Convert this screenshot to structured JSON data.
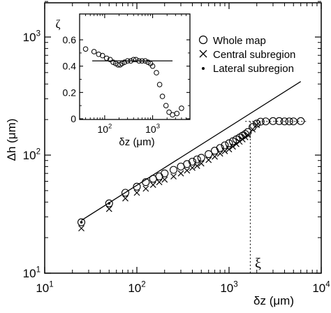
{
  "chart_data": [
    {
      "type": "scatter",
      "title": "",
      "xlabel": "δz (μm)",
      "ylabel": "Δh (μm)",
      "x_scale": "log",
      "y_scale": "log",
      "xlim": [
        10,
        10000
      ],
      "ylim": [
        10,
        2000
      ],
      "x_ticks": [
        {
          "value": 10,
          "base": "10",
          "exp": "1"
        },
        {
          "value": 100,
          "base": "10",
          "exp": "2"
        },
        {
          "value": 1000,
          "base": "10",
          "exp": "3"
        },
        {
          "value": 10000,
          "base": "10",
          "exp": "4"
        }
      ],
      "y_ticks": [
        {
          "value": 10,
          "base": "10",
          "exp": "1"
        },
        {
          "value": 100,
          "base": "10",
          "exp": "2"
        },
        {
          "value": 1000,
          "base": "10",
          "exp": "3"
        }
      ],
      "legend_position": "top-right",
      "series": [
        {
          "name": "Whole map",
          "marker": "circle",
          "x": [
            25,
            50,
            75,
            100,
            125,
            150,
            175,
            200,
            250,
            300,
            350,
            400,
            450,
            500,
            600,
            700,
            800,
            900,
            1000,
            1100,
            1200,
            1300,
            1400,
            1500,
            1600,
            1800,
            2000,
            2200,
            2500,
            3000,
            3500,
            4000,
            4500,
            5000,
            6000
          ],
          "y": [
            27,
            39,
            48,
            54,
            59,
            63,
            66,
            70,
            75,
            80,
            84,
            88,
            92,
            95,
            102,
            109,
            115,
            121,
            126,
            131,
            136,
            141,
            146,
            151,
            157,
            173,
            185,
            192,
            193,
            194,
            194,
            193,
            193,
            193,
            194
          ]
        },
        {
          "name": "Central subregion",
          "marker": "x",
          "x": [
            25,
            50,
            75,
            100,
            125,
            150,
            175,
            200,
            250,
            300,
            350,
            400,
            450,
            500,
            600,
            700,
            800,
            900,
            1000,
            1100,
            1200,
            1300,
            1400,
            1500,
            1600,
            1800,
            2000
          ],
          "y": [
            24,
            35,
            43,
            48,
            52,
            56,
            59,
            62,
            66,
            70,
            74,
            78,
            81,
            85,
            91,
            97,
            103,
            108,
            112,
            118,
            124,
            130,
            136,
            142,
            148,
            165,
            180
          ]
        },
        {
          "name": "Lateral subregion",
          "marker": "dot",
          "x": [
            25,
            50
          ],
          "y": [
            27,
            39
          ]
        }
      ],
      "fit_line": {
        "x": [
          25,
          6000
        ],
        "y": [
          28,
          420
        ]
      },
      "saturation_line": {
        "y": 193,
        "x": [
          1500,
          7000
        ]
      },
      "crossover": {
        "x": 1700,
        "label": "ξ"
      }
    },
    {
      "type": "scatter",
      "title": "",
      "xlabel": "δz (μm)",
      "ylabel": "ζ",
      "x_scale": "log",
      "xlim": [
        30,
        6000
      ],
      "ylim": [
        0,
        0.65
      ],
      "x_ticks": [
        {
          "value": 100,
          "base": "10",
          "exp": "2"
        },
        {
          "value": 1000,
          "base": "10",
          "exp": "3"
        }
      ],
      "y_ticks": [
        "0",
        "0.2",
        "0.4",
        "0.6"
      ],
      "series": [
        {
          "name": "",
          "marker": "circle",
          "x": [
            40,
            60,
            75,
            90,
            110,
            130,
            150,
            170,
            190,
            210,
            230,
            260,
            300,
            350,
            400,
            450,
            520,
            600,
            700,
            800,
            900,
            1000,
            1200,
            1400,
            1600,
            1900,
            2200,
            2600,
            3200,
            4000
          ],
          "y": [
            0.53,
            0.51,
            0.49,
            0.48,
            0.46,
            0.45,
            0.43,
            0.42,
            0.41,
            0.41,
            0.42,
            0.43,
            0.44,
            0.44,
            0.45,
            0.45,
            0.44,
            0.44,
            0.44,
            0.43,
            0.42,
            0.4,
            0.35,
            0.26,
            0.17,
            0.1,
            0.05,
            0.03,
            0.04,
            0.08
          ]
        }
      ],
      "hline": {
        "y": 0.44,
        "x": [
          55,
          2600
        ]
      }
    }
  ],
  "legend": [
    {
      "label": "Whole map",
      "marker": "circle"
    },
    {
      "label": "Central subregion",
      "marker": "x"
    },
    {
      "label": "Lateral subregion",
      "marker": "dot"
    }
  ]
}
